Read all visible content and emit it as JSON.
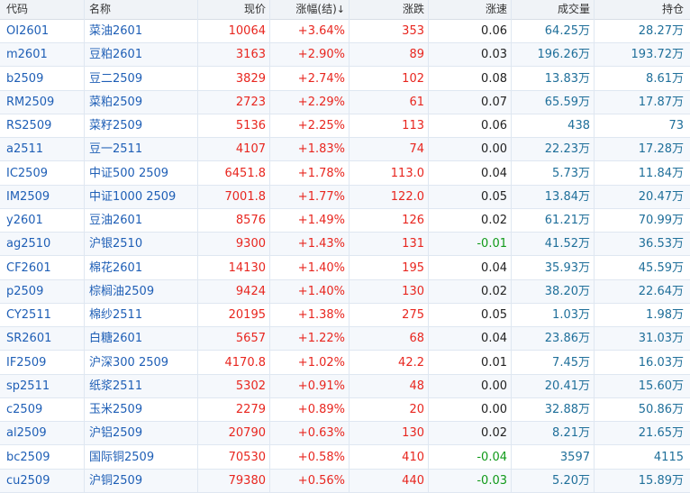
{
  "columns": {
    "code": "代码",
    "name": "名称",
    "price": "现价",
    "change_pct": "涨幅(结)",
    "change_pct_sort": "↓",
    "change": "涨跌",
    "speed": "涨速",
    "volume": "成交量",
    "open_interest": "持仓"
  },
  "colors": {
    "up": "#e8261f",
    "down": "#119a1a",
    "neutral": "#222222",
    "code": "#1f5fb6",
    "volume": "#1f6f9a"
  },
  "rows": [
    {
      "code": "OI2601",
      "name": "菜油2601",
      "price": "10064",
      "change_pct": "+3.64%",
      "change": "353",
      "speed": "0.06",
      "speed_dir": "up",
      "volume": "64.25万",
      "open_interest": "28.27万"
    },
    {
      "code": "m2601",
      "name": "豆粕2601",
      "price": "3163",
      "change_pct": "+2.90%",
      "change": "89",
      "speed": "0.03",
      "speed_dir": "up",
      "volume": "196.26万",
      "open_interest": "193.72万"
    },
    {
      "code": "b2509",
      "name": "豆二2509",
      "price": "3829",
      "change_pct": "+2.74%",
      "change": "102",
      "speed": "0.08",
      "speed_dir": "up",
      "volume": "13.83万",
      "open_interest": "8.61万"
    },
    {
      "code": "RM2509",
      "name": "菜粕2509",
      "price": "2723",
      "change_pct": "+2.29%",
      "change": "61",
      "speed": "0.07",
      "speed_dir": "up",
      "volume": "65.59万",
      "open_interest": "17.87万"
    },
    {
      "code": "RS2509",
      "name": "菜籽2509",
      "price": "5136",
      "change_pct": "+2.25%",
      "change": "113",
      "speed": "0.06",
      "speed_dir": "up",
      "volume": "438",
      "open_interest": "73"
    },
    {
      "code": "a2511",
      "name": "豆一2511",
      "price": "4107",
      "change_pct": "+1.83%",
      "change": "74",
      "speed": "0.00",
      "speed_dir": "flat",
      "volume": "22.23万",
      "open_interest": "17.28万"
    },
    {
      "code": "IC2509",
      "name": "中证500 2509",
      "price": "6451.8",
      "change_pct": "+1.78%",
      "change": "113.0",
      "speed": "0.04",
      "speed_dir": "up",
      "volume": "5.73万",
      "open_interest": "11.84万"
    },
    {
      "code": "IM2509",
      "name": "中证1000 2509",
      "price": "7001.8",
      "change_pct": "+1.77%",
      "change": "122.0",
      "speed": "0.05",
      "speed_dir": "up",
      "volume": "13.84万",
      "open_interest": "20.47万"
    },
    {
      "code": "y2601",
      "name": "豆油2601",
      "price": "8576",
      "change_pct": "+1.49%",
      "change": "126",
      "speed": "0.02",
      "speed_dir": "up",
      "volume": "61.21万",
      "open_interest": "70.99万"
    },
    {
      "code": "ag2510",
      "name": "沪银2510",
      "price": "9300",
      "change_pct": "+1.43%",
      "change": "131",
      "speed": "-0.01",
      "speed_dir": "down",
      "volume": "41.52万",
      "open_interest": "36.53万"
    },
    {
      "code": "CF2601",
      "name": "棉花2601",
      "price": "14130",
      "change_pct": "+1.40%",
      "change": "195",
      "speed": "0.04",
      "speed_dir": "up",
      "volume": "35.93万",
      "open_interest": "45.59万"
    },
    {
      "code": "p2509",
      "name": "棕榈油2509",
      "price": "9424",
      "change_pct": "+1.40%",
      "change": "130",
      "speed": "0.02",
      "speed_dir": "up",
      "volume": "38.20万",
      "open_interest": "22.64万"
    },
    {
      "code": "CY2511",
      "name": "棉纱2511",
      "price": "20195",
      "change_pct": "+1.38%",
      "change": "275",
      "speed": "0.05",
      "speed_dir": "up",
      "volume": "1.03万",
      "open_interest": "1.98万"
    },
    {
      "code": "SR2601",
      "name": "白糖2601",
      "price": "5657",
      "change_pct": "+1.22%",
      "change": "68",
      "speed": "0.04",
      "speed_dir": "up",
      "volume": "23.86万",
      "open_interest": "31.03万"
    },
    {
      "code": "IF2509",
      "name": "沪深300 2509",
      "price": "4170.8",
      "change_pct": "+1.02%",
      "change": "42.2",
      "speed": "0.01",
      "speed_dir": "up",
      "volume": "7.45万",
      "open_interest": "16.03万"
    },
    {
      "code": "sp2511",
      "name": "纸浆2511",
      "price": "5302",
      "change_pct": "+0.91%",
      "change": "48",
      "speed": "0.00",
      "speed_dir": "flat",
      "volume": "20.41万",
      "open_interest": "15.60万"
    },
    {
      "code": "c2509",
      "name": "玉米2509",
      "price": "2279",
      "change_pct": "+0.89%",
      "change": "20",
      "speed": "0.00",
      "speed_dir": "flat",
      "volume": "32.88万",
      "open_interest": "50.86万"
    },
    {
      "code": "al2509",
      "name": "沪铝2509",
      "price": "20790",
      "change_pct": "+0.63%",
      "change": "130",
      "speed": "0.02",
      "speed_dir": "up",
      "volume": "8.21万",
      "open_interest": "21.65万"
    },
    {
      "code": "bc2509",
      "name": "国际铜2509",
      "price": "70530",
      "change_pct": "+0.58%",
      "change": "410",
      "speed": "-0.04",
      "speed_dir": "down",
      "volume": "3597",
      "open_interest": "4115"
    },
    {
      "code": "cu2509",
      "name": "沪铜2509",
      "price": "79380",
      "change_pct": "+0.56%",
      "change": "440",
      "speed": "-0.03",
      "speed_dir": "down",
      "volume": "5.20万",
      "open_interest": "15.89万"
    }
  ]
}
